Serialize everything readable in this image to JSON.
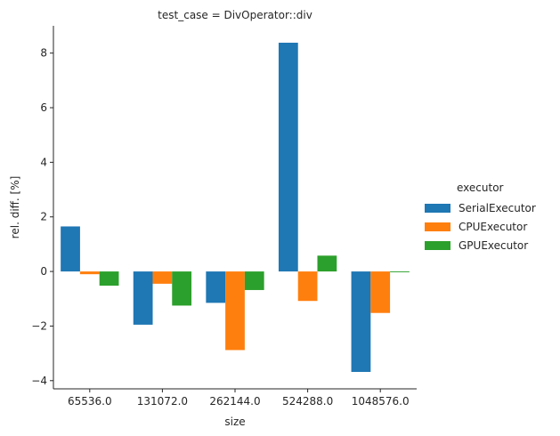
{
  "chart_data": {
    "type": "bar",
    "title": "test_case = DivOperator::div",
    "xlabel": "size",
    "ylabel": "rel. diff. [%]",
    "categories": [
      "65536.0",
      "131072.0",
      "262144.0",
      "524288.0",
      "1048576.0"
    ],
    "ylim": [
      -4.3,
      9.0
    ],
    "yticks": [
      -4,
      -2,
      0,
      2,
      4,
      6,
      8
    ],
    "legend": {
      "title": "executor",
      "placement": "right"
    },
    "series": [
      {
        "name": "SerialExecutor",
        "color": "#1f77b4",
        "values": [
          1.65,
          -1.95,
          -1.15,
          8.38,
          -3.68
        ]
      },
      {
        "name": "CPUExecutor",
        "color": "#ff7f0e",
        "values": [
          -0.1,
          -0.45,
          -2.88,
          -1.08,
          -1.52
        ]
      },
      {
        "name": "GPUExecutor",
        "color": "#2ca02c",
        "values": [
          -0.52,
          -1.25,
          -0.68,
          0.58,
          -0.03
        ]
      }
    ]
  }
}
